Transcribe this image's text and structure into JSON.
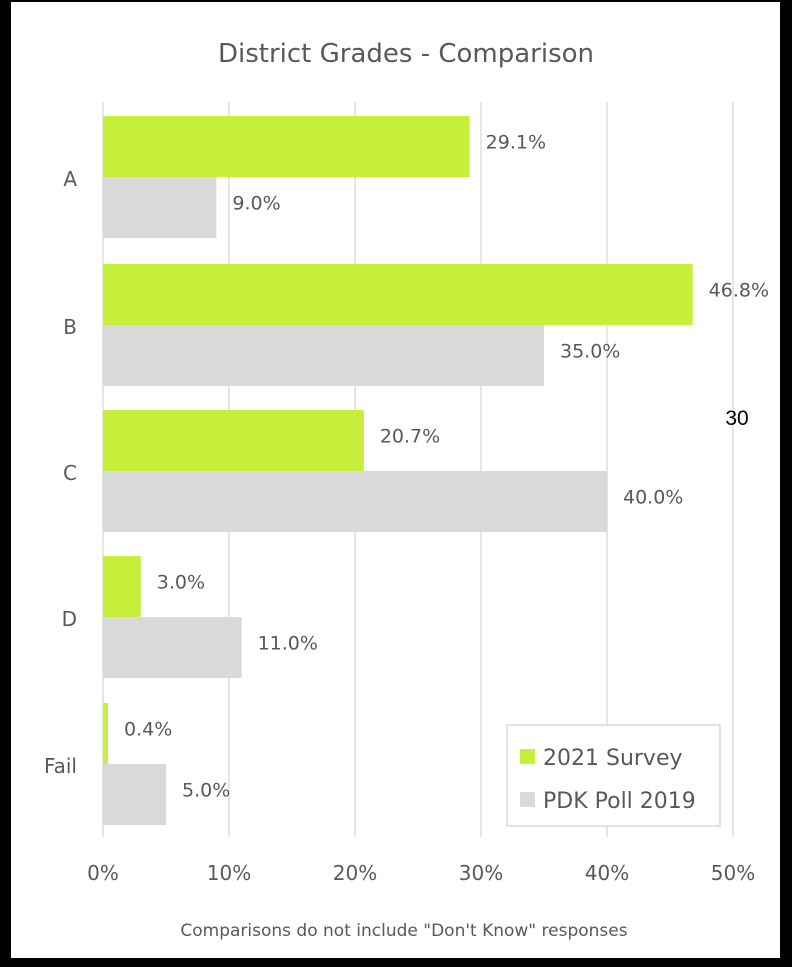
{
  "chart_data": {
    "type": "bar",
    "orientation": "horizontal",
    "title": "District Grades - Comparison",
    "categories": [
      "A",
      "B",
      "C",
      "D",
      "Fail"
    ],
    "series": [
      {
        "name": "2021 Survey",
        "values": [
          29.1,
          46.8,
          20.7,
          3.0,
          0.4
        ],
        "labels": [
          "29.1%",
          "46.8%",
          "20.7%",
          "3.0%",
          "0.4%"
        ],
        "color": "#c6ef3c"
      },
      {
        "name": "PDK Poll 2019",
        "values": [
          9.0,
          35.0,
          40.0,
          11.0,
          5.0
        ],
        "labels": [
          "9.0%",
          "35.0%",
          "40.0%",
          "11.0%",
          "5.0%"
        ],
        "color": "#d9d9d9"
      }
    ],
    "xlim": [
      0,
      50
    ],
    "x_ticks": [
      "0%",
      "10%",
      "20%",
      "30%",
      "40%",
      "50%"
    ],
    "grid": true,
    "legend_position": "bottom-right",
    "footnote": "Comparisons do not include \"Don't Know\" responses",
    "stray_annotation": "30"
  },
  "colors": {
    "page_background": "#000000",
    "panel_background": "#ffffff",
    "text": "#595959",
    "gridline": "#d9d9d9"
  }
}
